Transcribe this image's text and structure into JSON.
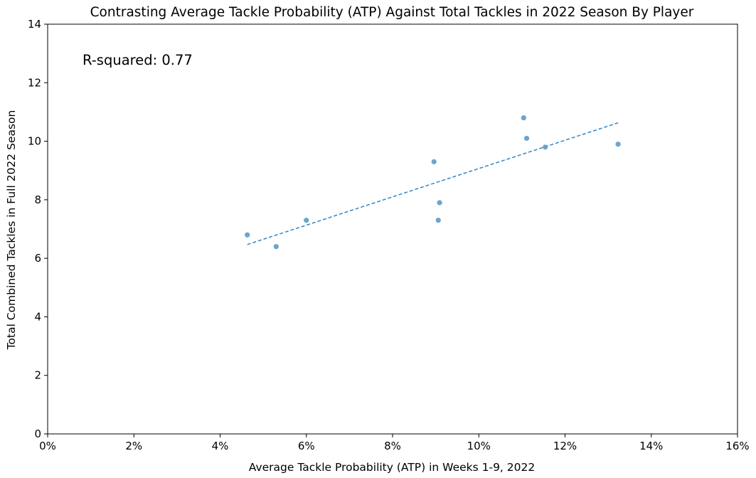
{
  "chart_data": {
    "type": "scatter",
    "title": "Contrasting Average Tackle Probability (ATP) Against Total Tackles in 2022 Season By Player",
    "xlabel": "Average Tackle Probability (ATP) in Weeks 1-9, 2022",
    "ylabel": "Total Combined Tackles in Full 2022 Season",
    "xlim": [
      0,
      0.16
    ],
    "ylim": [
      0,
      14
    ],
    "x_ticks": [
      0,
      0.02,
      0.04,
      0.06,
      0.08,
      0.1,
      0.12,
      0.14,
      0.16
    ],
    "x_tick_labels": [
      "0%",
      "2%",
      "4%",
      "6%",
      "8%",
      "10%",
      "12%",
      "14%",
      "16%"
    ],
    "y_ticks": [
      0,
      2,
      4,
      6,
      8,
      10,
      12,
      14
    ],
    "y_tick_labels": [
      "0",
      "2",
      "4",
      "6",
      "8",
      "10",
      "12",
      "14"
    ],
    "grid": false,
    "points": [
      {
        "x": 0.0463,
        "y": 6.8
      },
      {
        "x": 0.053,
        "y": 6.4
      },
      {
        "x": 0.06,
        "y": 7.3
      },
      {
        "x": 0.0896,
        "y": 9.3
      },
      {
        "x": 0.0906,
        "y": 7.3
      },
      {
        "x": 0.0909,
        "y": 7.9
      },
      {
        "x": 0.1104,
        "y": 10.8
      },
      {
        "x": 0.1111,
        "y": 10.1
      },
      {
        "x": 0.1154,
        "y": 9.8
      },
      {
        "x": 0.1323,
        "y": 9.9
      }
    ],
    "trendline": {
      "style": "dashed",
      "x": [
        0.0463,
        0.1323
      ],
      "y": [
        6.47,
        10.63
      ]
    },
    "annotation": "R-squared: 0.77",
    "colors": {
      "points": "#5b9bc9",
      "trendline": "#2f86c4"
    }
  }
}
